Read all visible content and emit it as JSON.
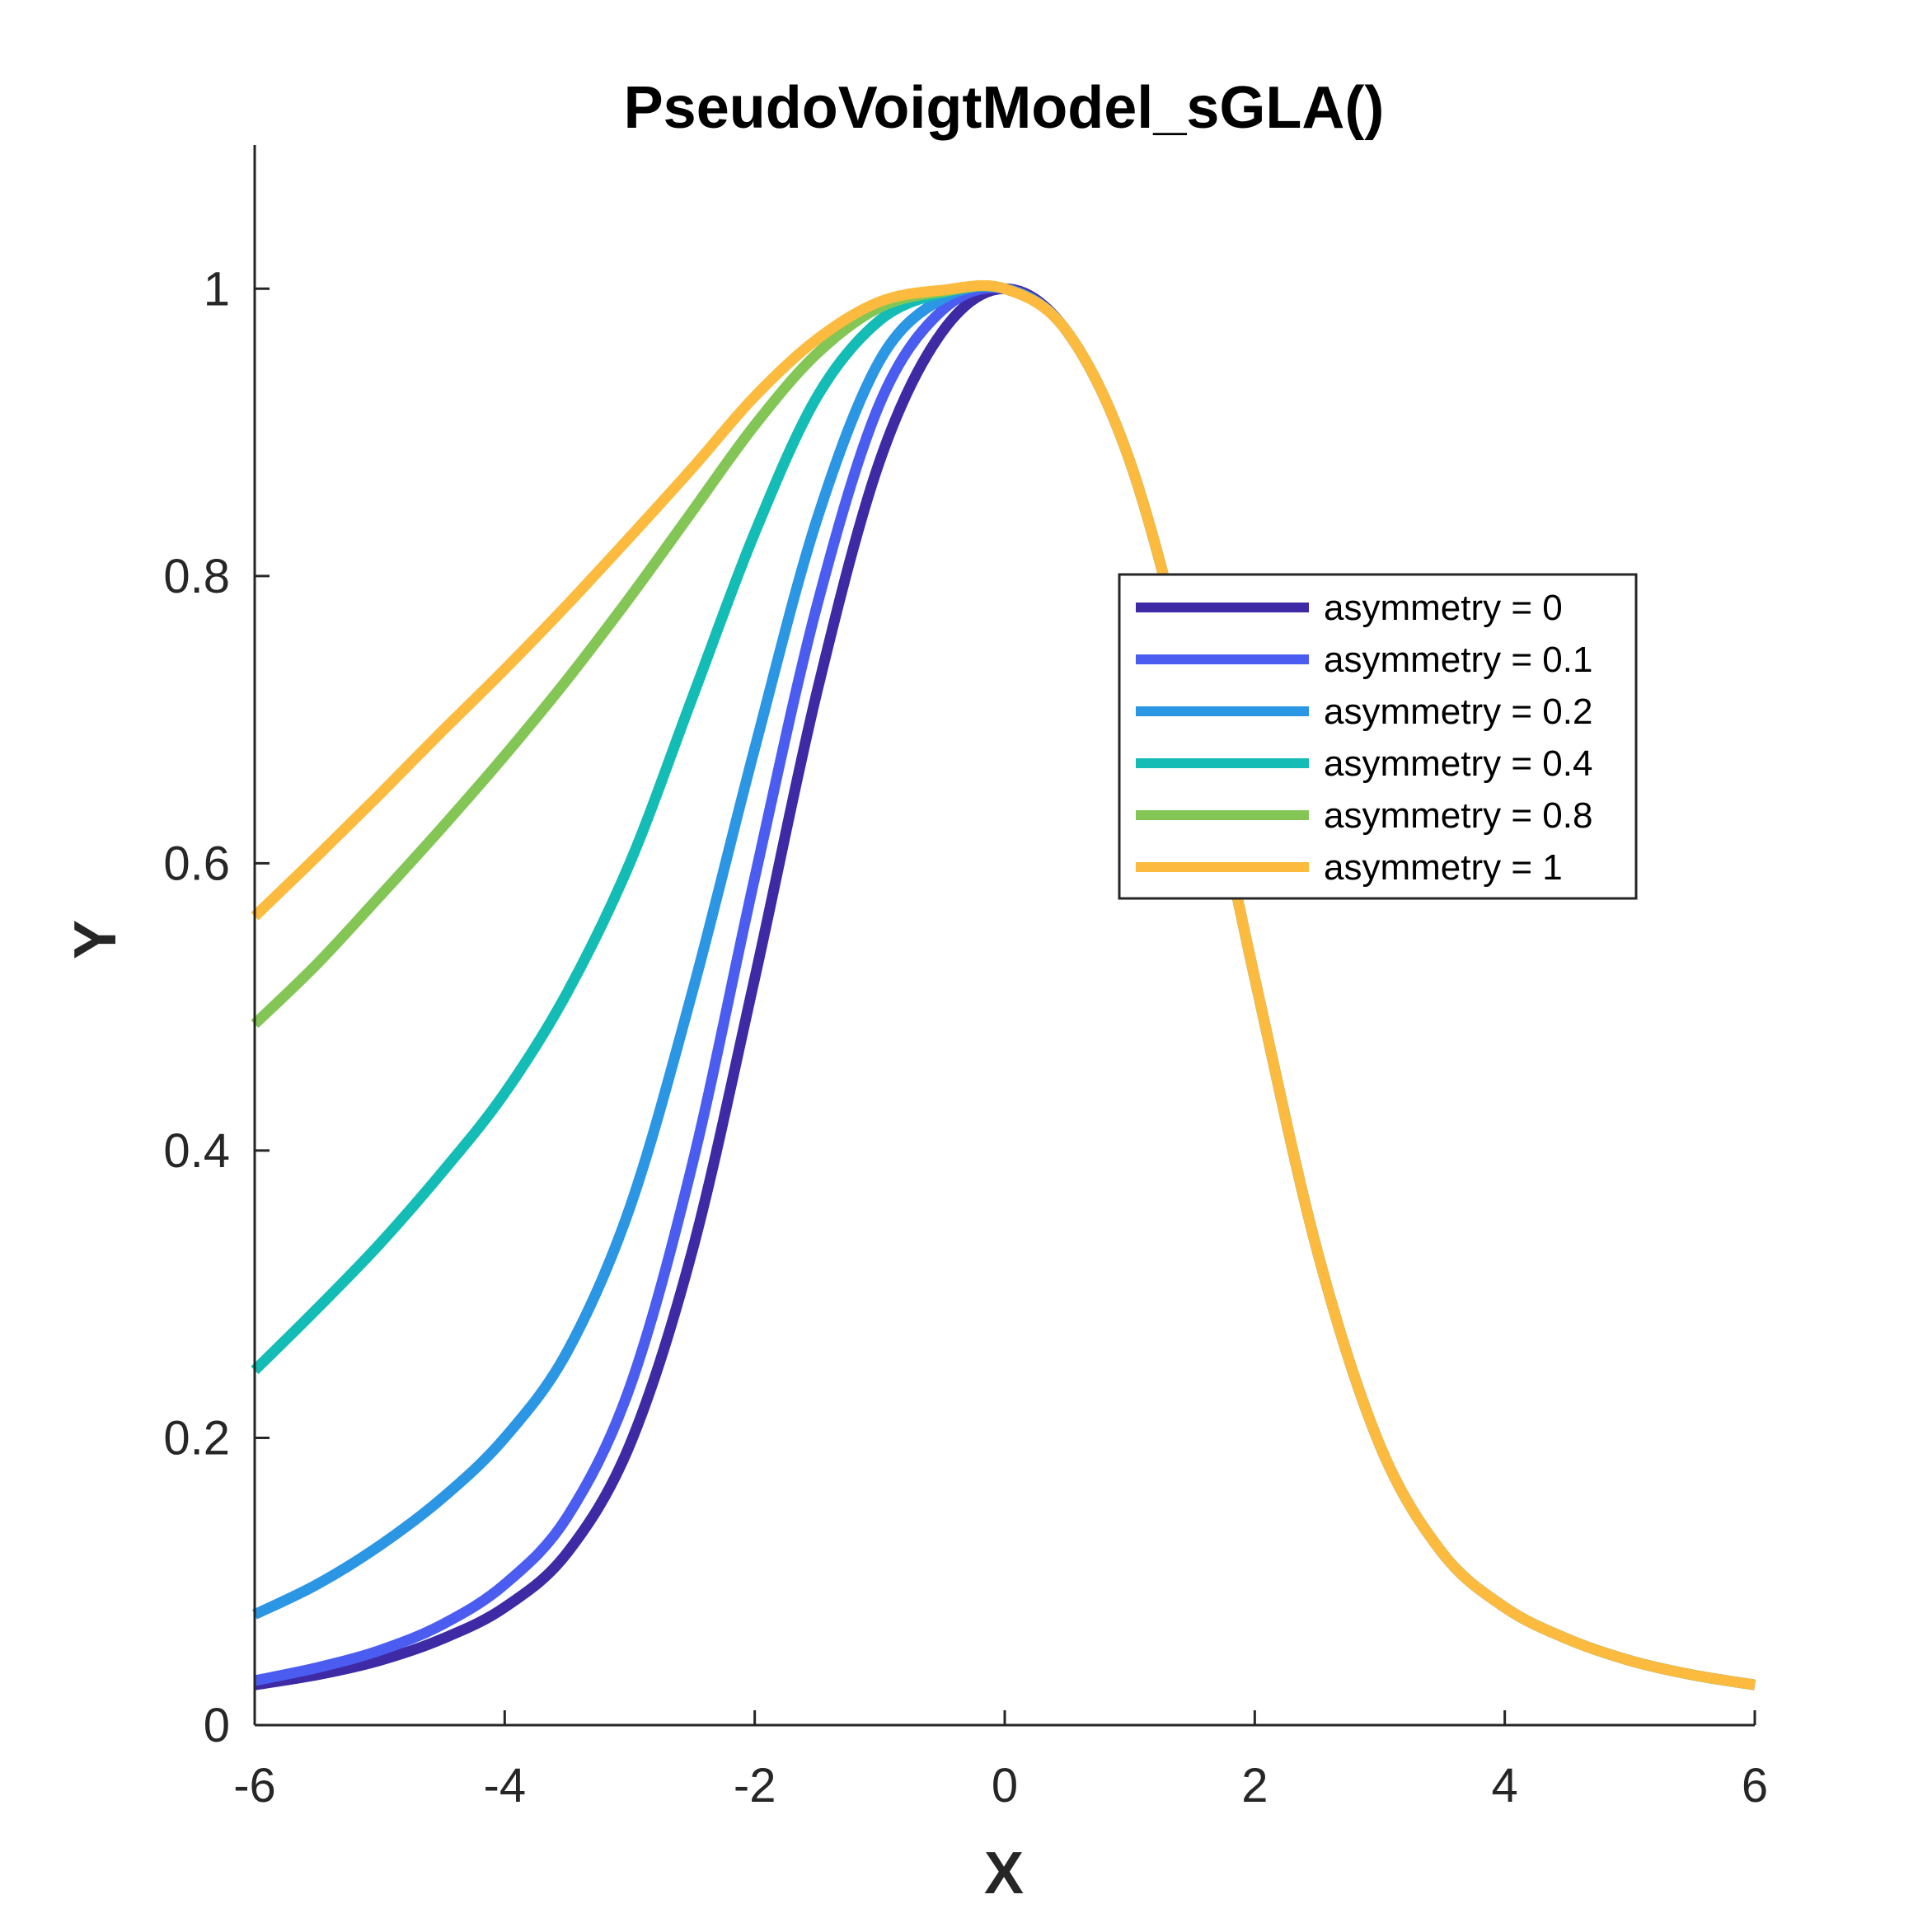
{
  "chart_data": {
    "type": "line",
    "title": "PseudoVoigtModel_sGLA()",
    "xlabel": "X",
    "ylabel": "Y",
    "xlim": [
      -6,
      6
    ],
    "ylim": [
      0,
      1.1
    ],
    "xticks": [
      -6,
      -4,
      -2,
      0,
      2,
      4,
      6
    ],
    "yticks": [
      0,
      0.2,
      0.4,
      0.6,
      0.8,
      1
    ],
    "xtick_labels": [
      "-6",
      "-4",
      "-2",
      "0",
      "2",
      "4",
      "6"
    ],
    "ytick_labels": [
      "0",
      "0.2",
      "0.4",
      "0.6",
      "0.8",
      "1"
    ],
    "grid": false,
    "legend_position": "right, middle",
    "x": [
      -6,
      -5.5,
      -5,
      -4.5,
      -4,
      -3.5,
      -3,
      -2.5,
      -2,
      -1.5,
      -1,
      -0.5,
      0,
      0.5,
      1,
      1.5,
      2,
      2.5,
      3,
      3.5,
      4,
      4.5,
      5,
      5.5,
      6
    ],
    "series": [
      {
        "name": "asymmetry = 0",
        "color": "#3f2aa6",
        "values": [
          0.028,
          0.035,
          0.045,
          0.06,
          0.082,
          0.12,
          0.195,
          0.33,
          0.52,
          0.72,
          0.88,
          0.97,
          1.0,
          0.97,
          0.88,
          0.72,
          0.52,
          0.33,
          0.195,
          0.12,
          0.082,
          0.06,
          0.045,
          0.035,
          0.028
        ]
      },
      {
        "name": "asymmetry = 0.1",
        "color": "#4a5df0",
        "values": [
          0.031,
          0.04,
          0.052,
          0.07,
          0.098,
          0.145,
          0.235,
          0.39,
          0.59,
          0.78,
          0.92,
          0.985,
          1.0,
          0.97,
          0.88,
          0.72,
          0.52,
          0.33,
          0.195,
          0.12,
          0.082,
          0.06,
          0.045,
          0.035,
          0.028
        ]
      },
      {
        "name": "asymmetry = 0.2",
        "color": "#2a96e4",
        "values": [
          0.077,
          0.098,
          0.125,
          0.158,
          0.2,
          0.26,
          0.36,
          0.51,
          0.68,
          0.84,
          0.95,
          0.993,
          1.0,
          0.97,
          0.88,
          0.72,
          0.52,
          0.33,
          0.195,
          0.12,
          0.082,
          0.06,
          0.045,
          0.035,
          0.028
        ]
      },
      {
        "name": "asymmetry = 0.4",
        "color": "#14bcb6",
        "values": [
          0.247,
          0.29,
          0.335,
          0.385,
          0.44,
          0.51,
          0.6,
          0.715,
          0.83,
          0.925,
          0.978,
          0.997,
          1.0,
          0.97,
          0.88,
          0.72,
          0.52,
          0.33,
          0.195,
          0.12,
          0.082,
          0.06,
          0.045,
          0.035,
          0.028
        ]
      },
      {
        "name": "asymmetry = 0.8",
        "color": "#83c656",
        "values": [
          0.488,
          0.53,
          0.577,
          0.625,
          0.675,
          0.728,
          0.785,
          0.845,
          0.905,
          0.955,
          0.987,
          0.998,
          1.0,
          0.97,
          0.88,
          0.72,
          0.52,
          0.33,
          0.195,
          0.12,
          0.082,
          0.06,
          0.045,
          0.035,
          0.028
        ]
      },
      {
        "name": "asymmetry = 1",
        "color": "#fcbb3e",
        "values": [
          0.563,
          0.605,
          0.648,
          0.692,
          0.735,
          0.78,
          0.827,
          0.875,
          0.925,
          0.965,
          0.991,
          0.999,
          1.0,
          0.97,
          0.88,
          0.72,
          0.52,
          0.33,
          0.195,
          0.12,
          0.082,
          0.06,
          0.045,
          0.035,
          0.028
        ]
      }
    ]
  }
}
